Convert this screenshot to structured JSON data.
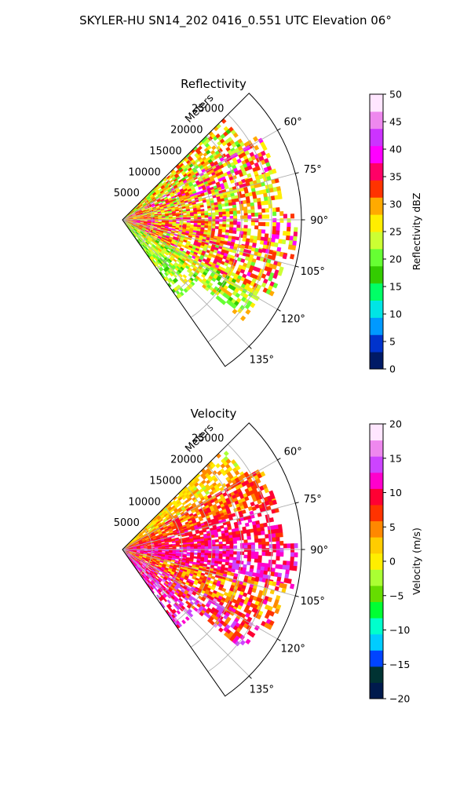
{
  "figure": {
    "title": "SKYLER-HU  SN14_202  0416_0.551 UTC Elevation 06°"
  },
  "chart_data": [
    {
      "type": "heatmap",
      "projection": "polar-sector",
      "title": "Reflectivity",
      "range_label": "Meters",
      "range_ticks": [
        "5000",
        "10000",
        "15000",
        "20000",
        "25000"
      ],
      "range_tick_values": [
        5000,
        10000,
        15000,
        20000,
        25000
      ],
      "range_max": 30000,
      "azimuth_range_deg": [
        45,
        145
      ],
      "azimuth_ticks": [
        "60°",
        "75°",
        "90°",
        "105°",
        "120°",
        "135°"
      ],
      "azimuth_tick_values": [
        60,
        75,
        90,
        105,
        120,
        135
      ],
      "grid": true,
      "colorbar": {
        "label": "Reflectivity dBZ",
        "range": [
          0,
          50
        ],
        "ticks": [
          "0",
          "5",
          "10",
          "15",
          "20",
          "25",
          "30",
          "35",
          "40",
          "45",
          "50"
        ],
        "tick_values": [
          0,
          5,
          10,
          15,
          20,
          25,
          30,
          35,
          40,
          45,
          50
        ],
        "stops": [
          "#001a66",
          "#0033cc",
          "#0099ff",
          "#00e5e5",
          "#00ff66",
          "#33cc00",
          "#66ff33",
          "#ccff33",
          "#ffee00",
          "#ffaa00",
          "#ff3300",
          "#ff0066",
          "#ff00ff",
          "#cc33ff",
          "#ee88ee",
          "#ffe6ff"
        ]
      },
      "echoes": [
        {
          "az": [
            45,
            58
          ],
          "r": [
            0,
            24000
          ],
          "dbz": [
            18,
            34
          ]
        },
        {
          "az": [
            58,
            72
          ],
          "r": [
            0,
            27000
          ],
          "dbz": [
            20,
            40
          ]
        },
        {
          "az": [
            72,
            88
          ],
          "r": [
            0,
            27000
          ],
          "dbz": [
            20,
            36
          ]
        },
        {
          "az": [
            88,
            102
          ],
          "r": [
            0,
            29000
          ],
          "dbz": [
            22,
            40
          ]
        },
        {
          "az": [
            102,
            118
          ],
          "r": [
            0,
            28000
          ],
          "dbz": [
            20,
            38
          ]
        },
        {
          "az": [
            118,
            130
          ],
          "r": [
            0,
            26000
          ],
          "dbz": [
            16,
            30
          ]
        },
        {
          "az": [
            130,
            145
          ],
          "r": [
            0,
            16000
          ],
          "dbz": [
            16,
            26
          ]
        }
      ]
    },
    {
      "type": "heatmap",
      "projection": "polar-sector",
      "title": "Velocity",
      "range_label": "Meters",
      "range_ticks": [
        "5000",
        "10000",
        "15000",
        "20000",
        "25000"
      ],
      "range_tick_values": [
        5000,
        10000,
        15000,
        20000,
        25000
      ],
      "range_max": 30000,
      "azimuth_range_deg": [
        45,
        145
      ],
      "azimuth_ticks": [
        "60°",
        "75°",
        "90°",
        "105°",
        "120°",
        "135°"
      ],
      "azimuth_tick_values": [
        60,
        75,
        90,
        105,
        120,
        135
      ],
      "grid": true,
      "colorbar": {
        "label": "Velocity (m/s)",
        "range": [
          -20,
          20
        ],
        "ticks": [
          "−20",
          "−15",
          "−10",
          "−5",
          "0",
          "5",
          "10",
          "15",
          "20"
        ],
        "tick_values": [
          -20,
          -15,
          -10,
          -5,
          0,
          5,
          10,
          15,
          20
        ],
        "stops": [
          "#001a4d",
          "#003333",
          "#0044ff",
          "#00ccff",
          "#00ffcc",
          "#00ff33",
          "#66dd00",
          "#aaff33",
          "#ffee00",
          "#ffcc00",
          "#ff8800",
          "#ff3300",
          "#ff0033",
          "#ff00cc",
          "#cc44ff",
          "#ee88ee",
          "#ffe6ff"
        ]
      },
      "echoes": [
        {
          "az": [
            45,
            58
          ],
          "r": [
            0,
            24000
          ],
          "vel": [
            -2,
            6
          ]
        },
        {
          "az": [
            58,
            72
          ],
          "r": [
            0,
            27000
          ],
          "vel": [
            2,
            10
          ]
        },
        {
          "az": [
            72,
            88
          ],
          "r": [
            0,
            27000
          ],
          "vel": [
            6,
            12
          ]
        },
        {
          "az": [
            88,
            102
          ],
          "r": [
            0,
            29000
          ],
          "vel": [
            8,
            14
          ]
        },
        {
          "az": [
            102,
            118
          ],
          "r": [
            0,
            28000
          ],
          "vel": [
            0,
            12
          ]
        },
        {
          "az": [
            118,
            130
          ],
          "r": [
            0,
            26000
          ],
          "vel": [
            4,
            16
          ]
        },
        {
          "az": [
            130,
            145
          ],
          "r": [
            0,
            16000
          ],
          "vel": [
            8,
            16
          ]
        }
      ]
    }
  ]
}
